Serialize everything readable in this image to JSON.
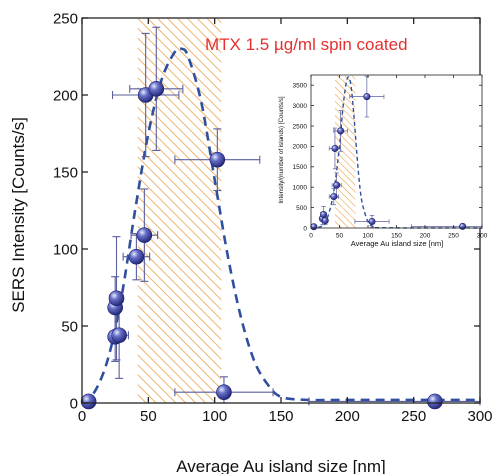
{
  "chart_data": [
    {
      "type": "scatter",
      "title": "",
      "annotation": "MTX 1.5 µg/ml spin coated",
      "xlabel": "Average Au island size [nm]",
      "ylabel": "SERS Intensity [Counts/s]",
      "xlim": [
        0,
        300
      ],
      "ylim": [
        0,
        250
      ],
      "xticks": [
        "0",
        "50",
        "100",
        "150",
        "200",
        "250",
        "300"
      ],
      "yticks": [
        "0",
        "50",
        "100",
        "150",
        "200",
        "250"
      ],
      "grid": false,
      "legend": "none",
      "highlight_band": {
        "x_from": 42,
        "x_to": 105,
        "style": "hatched"
      },
      "points": [
        {
          "x": 5,
          "y": 1,
          "xerr": 0,
          "yerr": 0
        },
        {
          "x": 25,
          "y": 62,
          "xerr": 3,
          "yerr": 20
        },
        {
          "x": 26,
          "y": 68,
          "xerr": 5,
          "yerr": 40
        },
        {
          "x": 25,
          "y": 43,
          "xerr": 4,
          "yerr": 16
        },
        {
          "x": 28,
          "y": 44,
          "xerr": 7,
          "yerr": 28
        },
        {
          "x": 41,
          "y": 95,
          "xerr": 10,
          "yerr": 15
        },
        {
          "x": 47,
          "y": 109,
          "xerr": 10,
          "yerr": 30
        },
        {
          "x": 48,
          "y": 200,
          "xerr": 25,
          "yerr": 40
        },
        {
          "x": 56,
          "y": 204,
          "xerr": 20,
          "yerr": 40
        },
        {
          "x": 102,
          "y": 158,
          "xerr": 32,
          "yerr": 20
        },
        {
          "x": 107,
          "y": 7,
          "xerr": 37,
          "yerr": 10
        },
        {
          "x": 266,
          "y": 1,
          "xerr": 95,
          "yerr": 3
        }
      ],
      "fit_curve": {
        "style": "dashed",
        "x": [
          0,
          10,
          20,
          30,
          40,
          50,
          60,
          70,
          75,
          80,
          90,
          100,
          110,
          120,
          130,
          140,
          150,
          170,
          200,
          300
        ],
        "y": [
          0,
          8,
          30,
          70,
          125,
          175,
          210,
          228,
          230,
          225,
          195,
          145,
          95,
          55,
          27,
          12,
          4,
          2,
          2,
          2
        ]
      },
      "colors": {
        "marker": "#2b2f8f",
        "fit": "#2f4f9f",
        "band": "#e6a04a",
        "annotation": "#e53030"
      }
    },
    {
      "type": "scatter",
      "role": "inset",
      "title": "",
      "xlabel": "Average Au island size [nm]",
      "ylabel": "Intensity/(number of islands) [Counts/s]",
      "xlim": [
        0,
        300
      ],
      "ylim": [
        0,
        3750
      ],
      "xticks": [
        "0",
        "50",
        "100",
        "150",
        "200",
        "250",
        "300"
      ],
      "yticks": [
        "0",
        "500",
        "1000",
        "1500",
        "2000",
        "2500",
        "3000",
        "3500"
      ],
      "highlight_band": {
        "x_from": 42,
        "x_to": 78,
        "style": "hatched"
      },
      "points": [
        {
          "x": 5,
          "y": 30,
          "xerr": 0,
          "yerr": 0
        },
        {
          "x": 20,
          "y": 230,
          "xerr": 4,
          "yerr": 150
        },
        {
          "x": 22,
          "y": 330,
          "xerr": 5,
          "yerr": 200
        },
        {
          "x": 25,
          "y": 180,
          "xerr": 4,
          "yerr": 100
        },
        {
          "x": 40,
          "y": 770,
          "xerr": 8,
          "yerr": 200
        },
        {
          "x": 45,
          "y": 1050,
          "xerr": 8,
          "yerr": 300
        },
        {
          "x": 42,
          "y": 1950,
          "xerr": 10,
          "yerr": 500
        },
        {
          "x": 52,
          "y": 2380,
          "xerr": 12,
          "yerr": 500
        },
        {
          "x": 98,
          "y": 3220,
          "xerr": 30,
          "yerr": 500
        },
        {
          "x": 107,
          "y": 160,
          "xerr": 30,
          "yerr": 150
        },
        {
          "x": 266,
          "y": 40,
          "xerr": 90,
          "yerr": 40
        }
      ],
      "fit_curve": {
        "style": "dashed",
        "x": [
          0,
          20,
          30,
          40,
          50,
          55,
          60,
          65,
          70,
          75,
          80,
          85,
          90,
          100,
          110,
          130,
          300
        ],
        "y": [
          0,
          50,
          300,
          900,
          2000,
          2800,
          3400,
          3700,
          3500,
          2800,
          1900,
          1100,
          600,
          150,
          30,
          5,
          0
        ]
      }
    }
  ]
}
